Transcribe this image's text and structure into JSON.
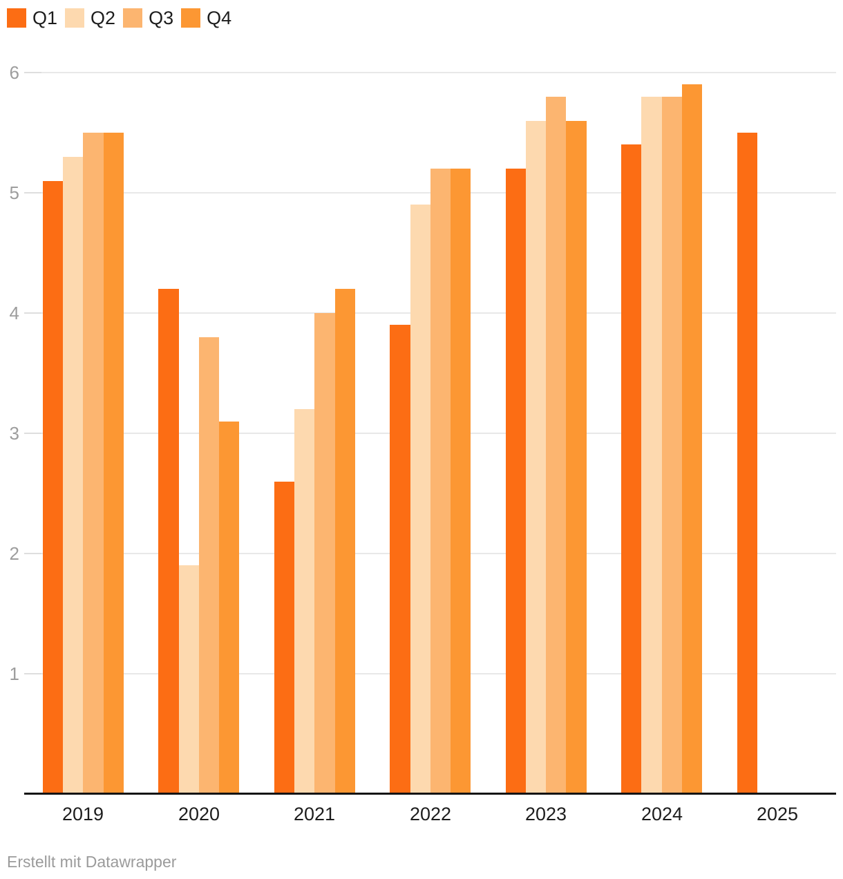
{
  "chart_data": {
    "type": "bar",
    "orientation": "vertical",
    "categories": [
      "2019",
      "2020",
      "2021",
      "2022",
      "2023",
      "2024",
      "2025"
    ],
    "series": [
      {
        "name": "Q1",
        "color": "#fc6d14",
        "values": [
          5.1,
          4.2,
          2.6,
          3.9,
          5.2,
          5.4,
          5.5
        ]
      },
      {
        "name": "Q2",
        "color": "#fdd9af",
        "values": [
          5.3,
          1.9,
          3.2,
          4.9,
          5.6,
          5.8,
          null
        ]
      },
      {
        "name": "Q3",
        "color": "#fcb570",
        "values": [
          5.5,
          3.8,
          4.0,
          5.2,
          5.8,
          5.8,
          null
        ]
      },
      {
        "name": "Q4",
        "color": "#fc9733",
        "values": [
          5.5,
          3.1,
          4.2,
          5.2,
          5.6,
          5.9,
          null
        ]
      }
    ],
    "xlabel": "",
    "ylabel": "",
    "ylim": [
      0,
      6
    ],
    "yticks": [
      1,
      2,
      3,
      4,
      5,
      6
    ],
    "grid": true,
    "legend_position": "top-left",
    "axis_text_color": "#1d1d1d",
    "ytick_text_color": "#9d9d9d",
    "gridline_color": "#e8e8e8",
    "axisline_color": "#141414"
  },
  "footer": {
    "credit": "Erstellt mit Datawrapper"
  }
}
